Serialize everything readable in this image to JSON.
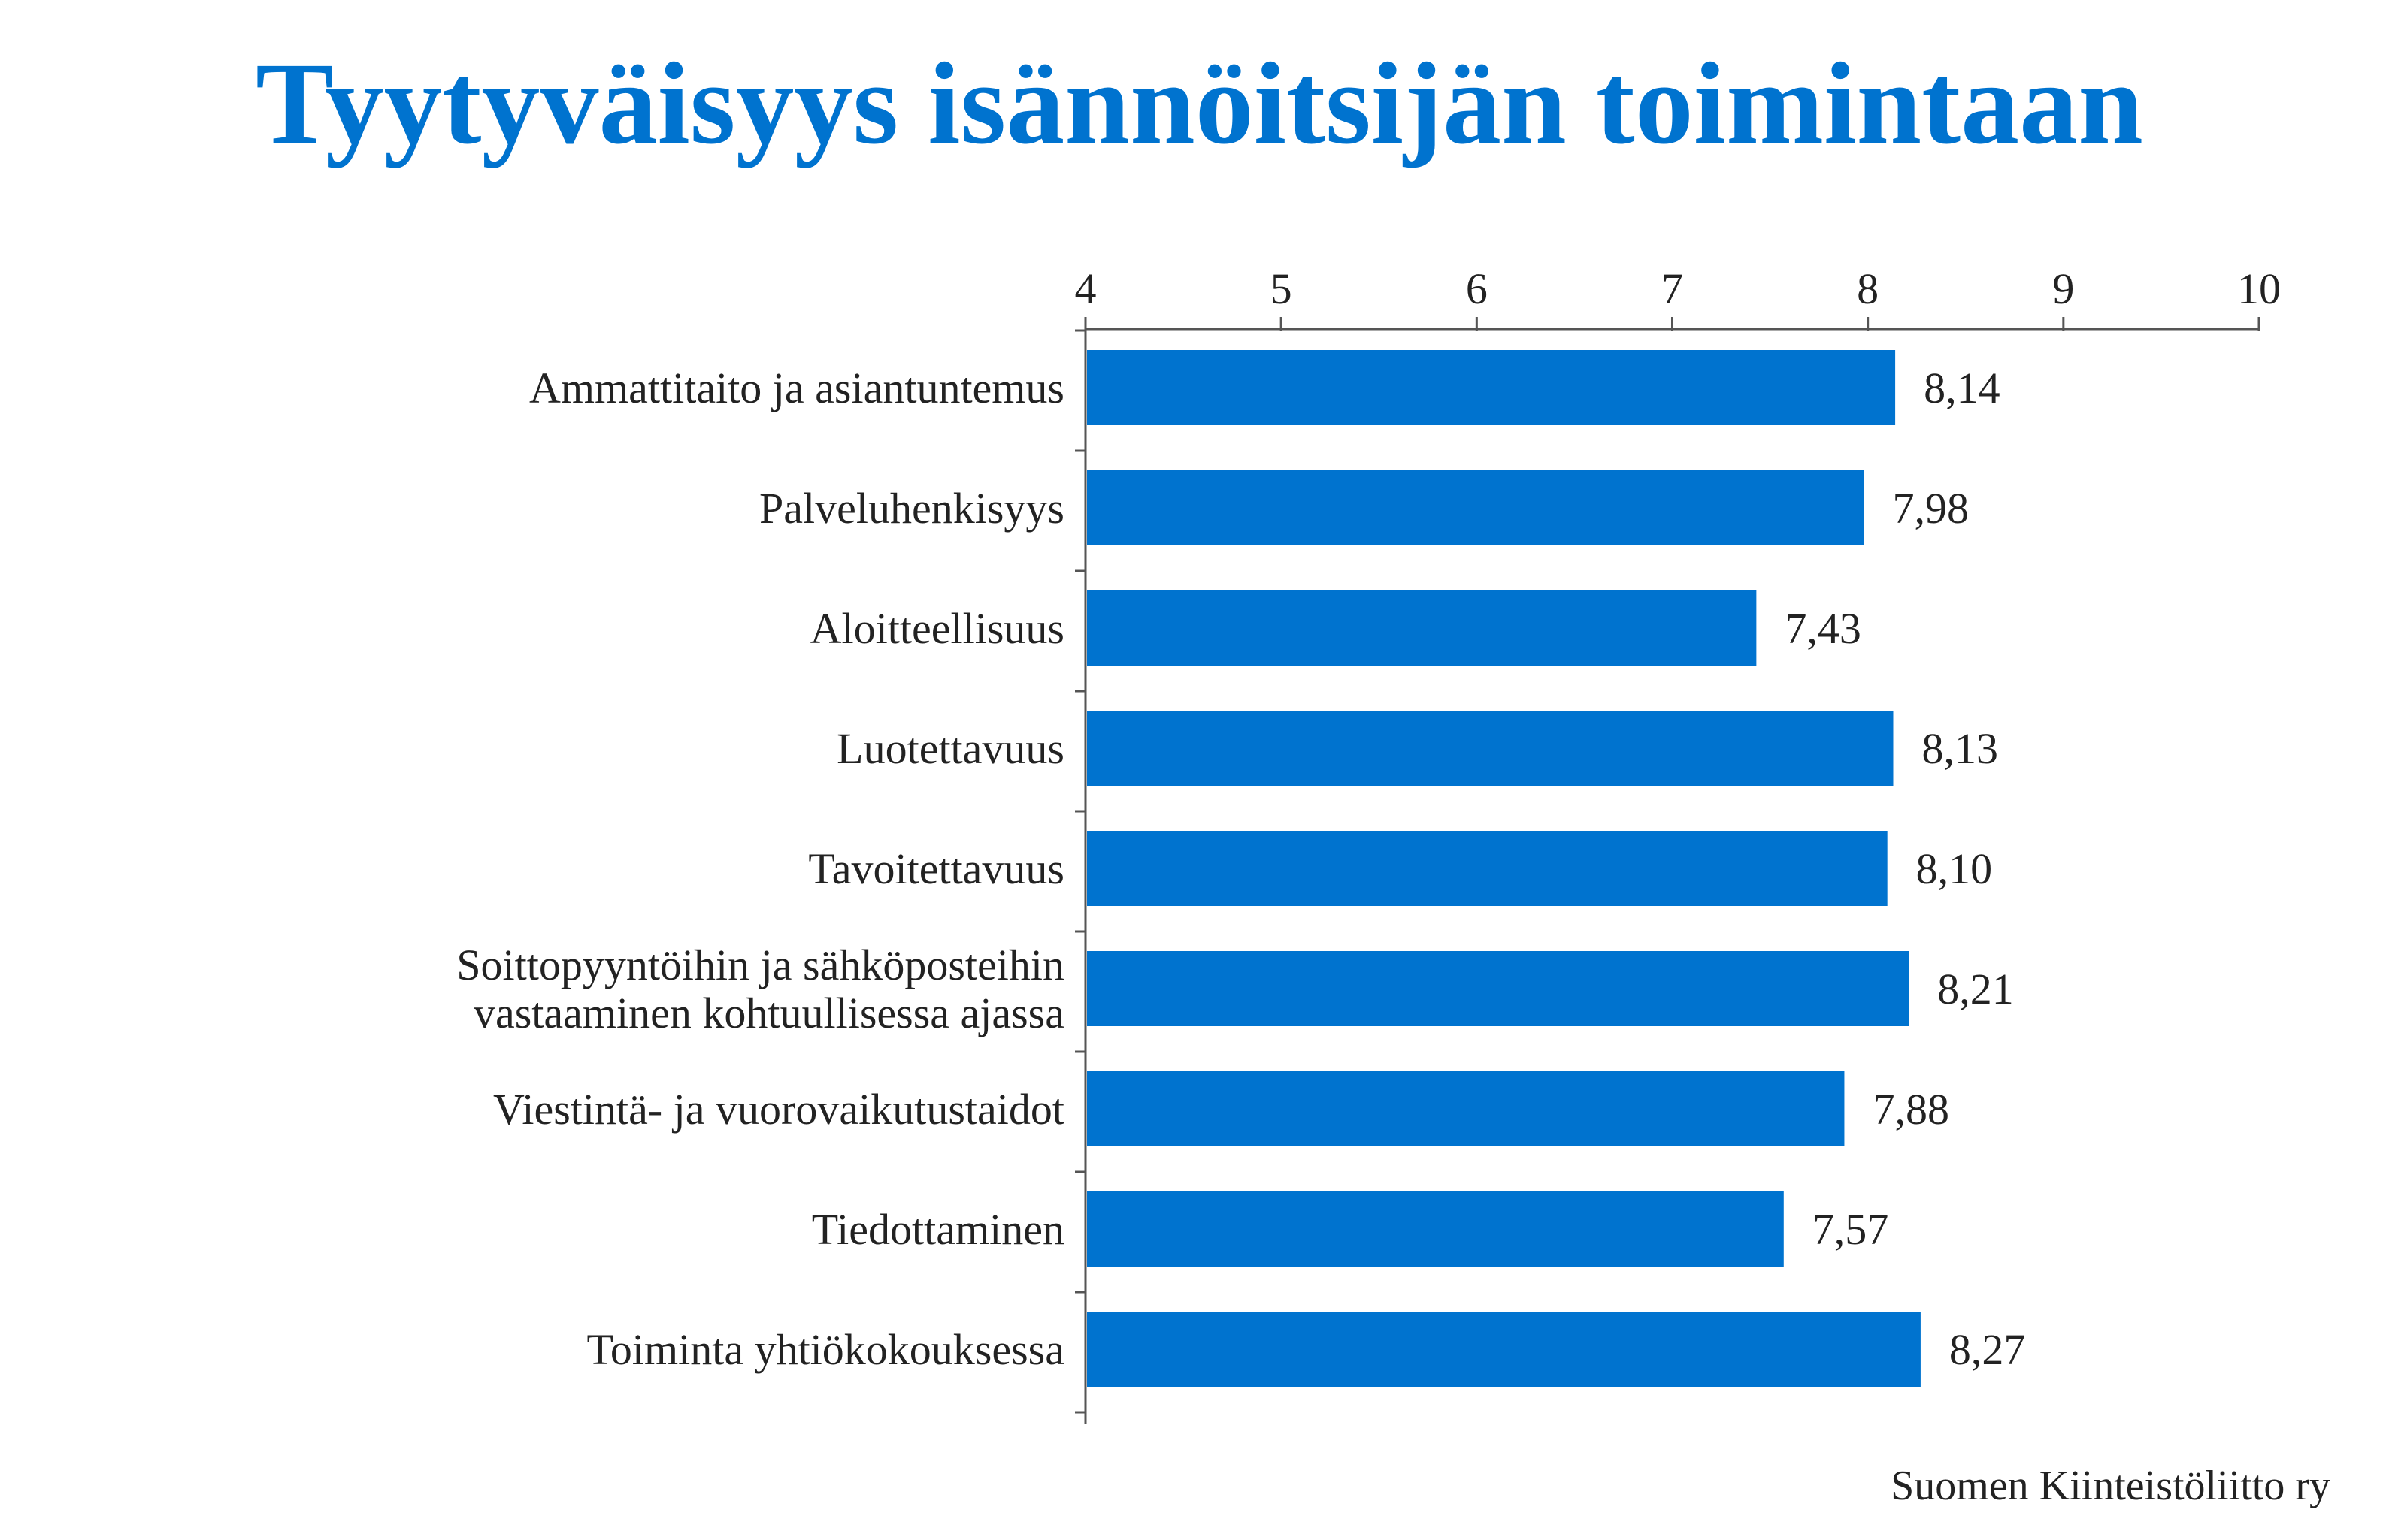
{
  "chart_data": {
    "type": "bar",
    "orientation": "horizontal",
    "title": "Tyytyväisyys isännöitsijän toimintaan",
    "categories": [
      [
        "Ammattitaito ja asiantuntemus"
      ],
      [
        "Palveluhenkisyys"
      ],
      [
        "Aloitteellisuus"
      ],
      [
        "Luotettavuus"
      ],
      [
        "Tavoitettavuus"
      ],
      [
        "Soittopyyntöihin ja sähköposteihin",
        "vastaaminen kohtuullisessa ajassa"
      ],
      [
        "Viestintä- ja vuorovaikutustaidot"
      ],
      [
        "Tiedottaminen"
      ],
      [
        "Toiminta yhtiökokouksessa"
      ]
    ],
    "values": [
      8.14,
      7.98,
      7.43,
      8.13,
      8.1,
      8.21,
      7.88,
      7.57,
      8.27
    ],
    "value_labels": [
      "8,14",
      "7,98",
      "7,43",
      "8,13",
      "8,10",
      "8,21",
      "7,88",
      "7,57",
      "8,27"
    ],
    "xlim": [
      4,
      10
    ],
    "xticks": [
      "4",
      "5",
      "6",
      "7",
      "8",
      "9",
      "10"
    ],
    "axis_position": "top",
    "grid": false,
    "bar_color": "#0073cf",
    "xlabel": "",
    "ylabel": ""
  },
  "source": "Suomen Kiinteistöliitto ry",
  "colors": {
    "title": "#0073cf",
    "text": "#222222",
    "axis": "#555555"
  }
}
